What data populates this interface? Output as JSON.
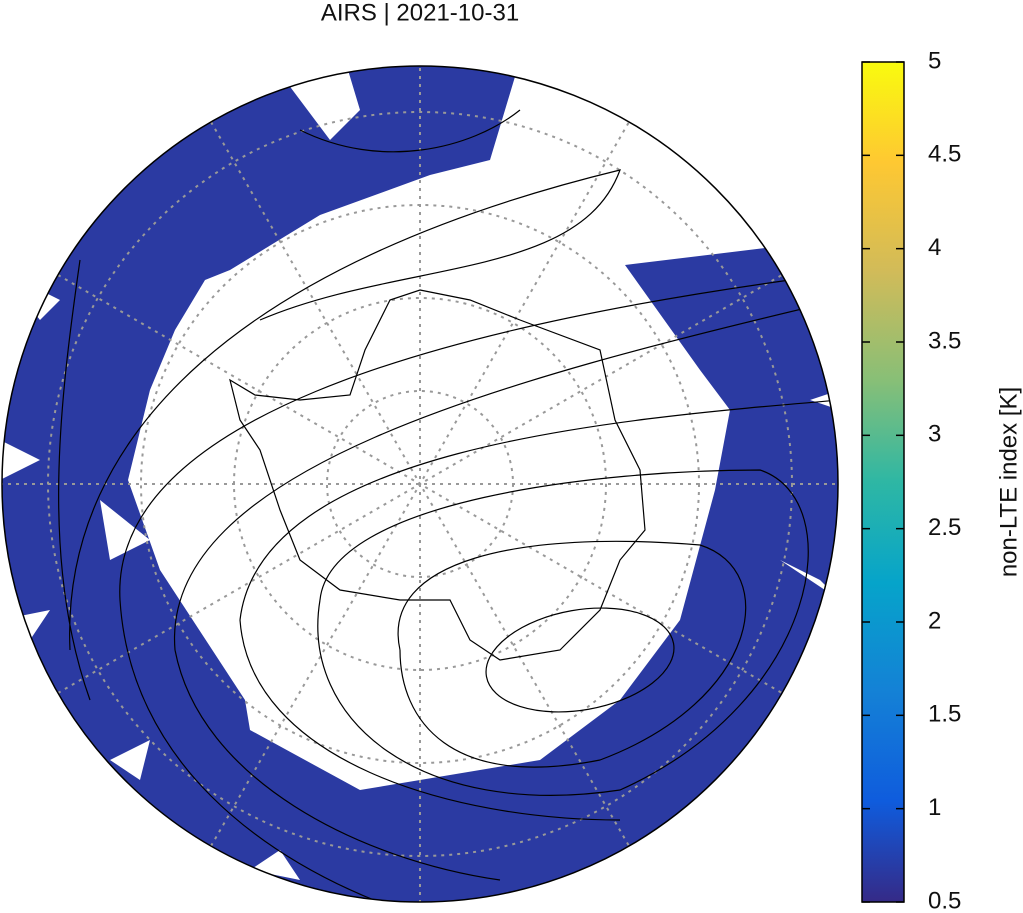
{
  "title": "AIRS | 2021-10-31",
  "colorbar": {
    "label": "non-LTE index [K]",
    "lim": [
      0.5,
      5
    ],
    "ticks": [
      0.5,
      1,
      1.5,
      2,
      2.5,
      3,
      3.5,
      4,
      4.5,
      5
    ]
  }
}
